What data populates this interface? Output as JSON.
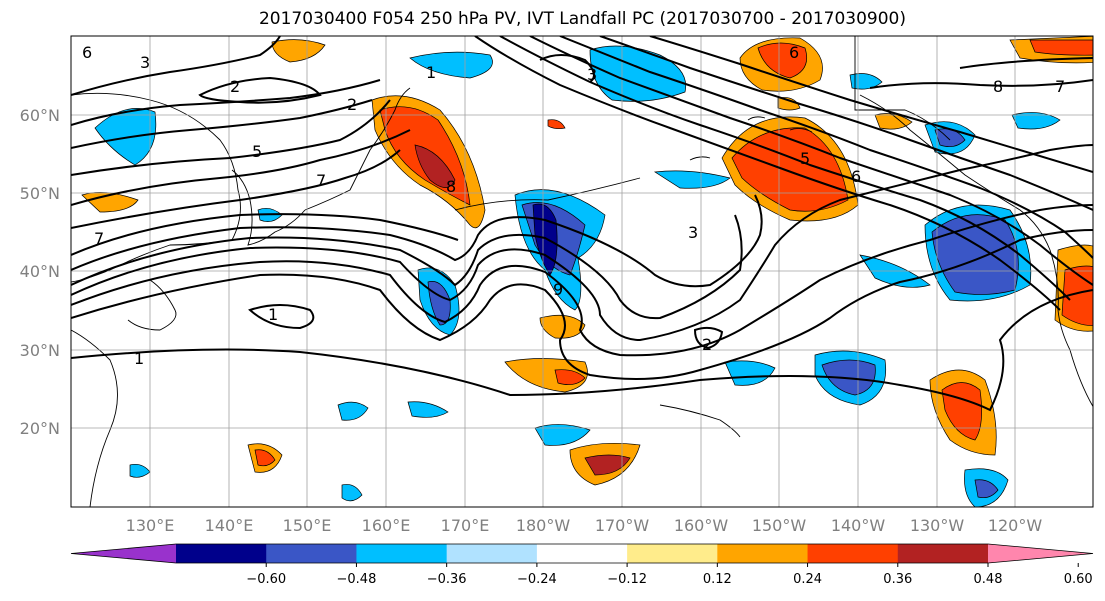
{
  "title": "2017030400 F054 250 hPa PV, IVT Landfall PC (2017030700 - 2017030900)",
  "map": {
    "lat_labels": [
      "60°N",
      "50°N",
      "40°N",
      "30°N",
      "20°N"
    ],
    "lon_labels": [
      "130°E",
      "140°E",
      "150°E",
      "160°E",
      "170°E",
      "180°W",
      "170°W",
      "160°W",
      "150°W",
      "140°W",
      "130°W",
      "120°W"
    ],
    "contour_labels": [
      "6",
      "3",
      "2",
      "1",
      "2",
      "5",
      "7",
      "7",
      "1",
      "1",
      "2",
      "3",
      "6",
      "8",
      "7",
      "8",
      "9",
      "6",
      "5",
      "3"
    ],
    "extent": {
      "lon": [
        120,
        250
      ],
      "lat": [
        10,
        70
      ]
    }
  },
  "colorbar": {
    "ticks": [
      "−0.60",
      "−0.48",
      "−0.36",
      "−0.24",
      "−0.12",
      "0.12",
      "0.24",
      "0.36",
      "0.48",
      "0.60"
    ],
    "colors": [
      "#9932cc",
      "#00008b",
      "#3a56c6",
      "#00bfff",
      "#b0e2ff",
      "#ffffff",
      "#ffec8b",
      "#ffa500",
      "#ff4000",
      "#b22222",
      "#ff86ad"
    ],
    "extend": "both"
  }
}
